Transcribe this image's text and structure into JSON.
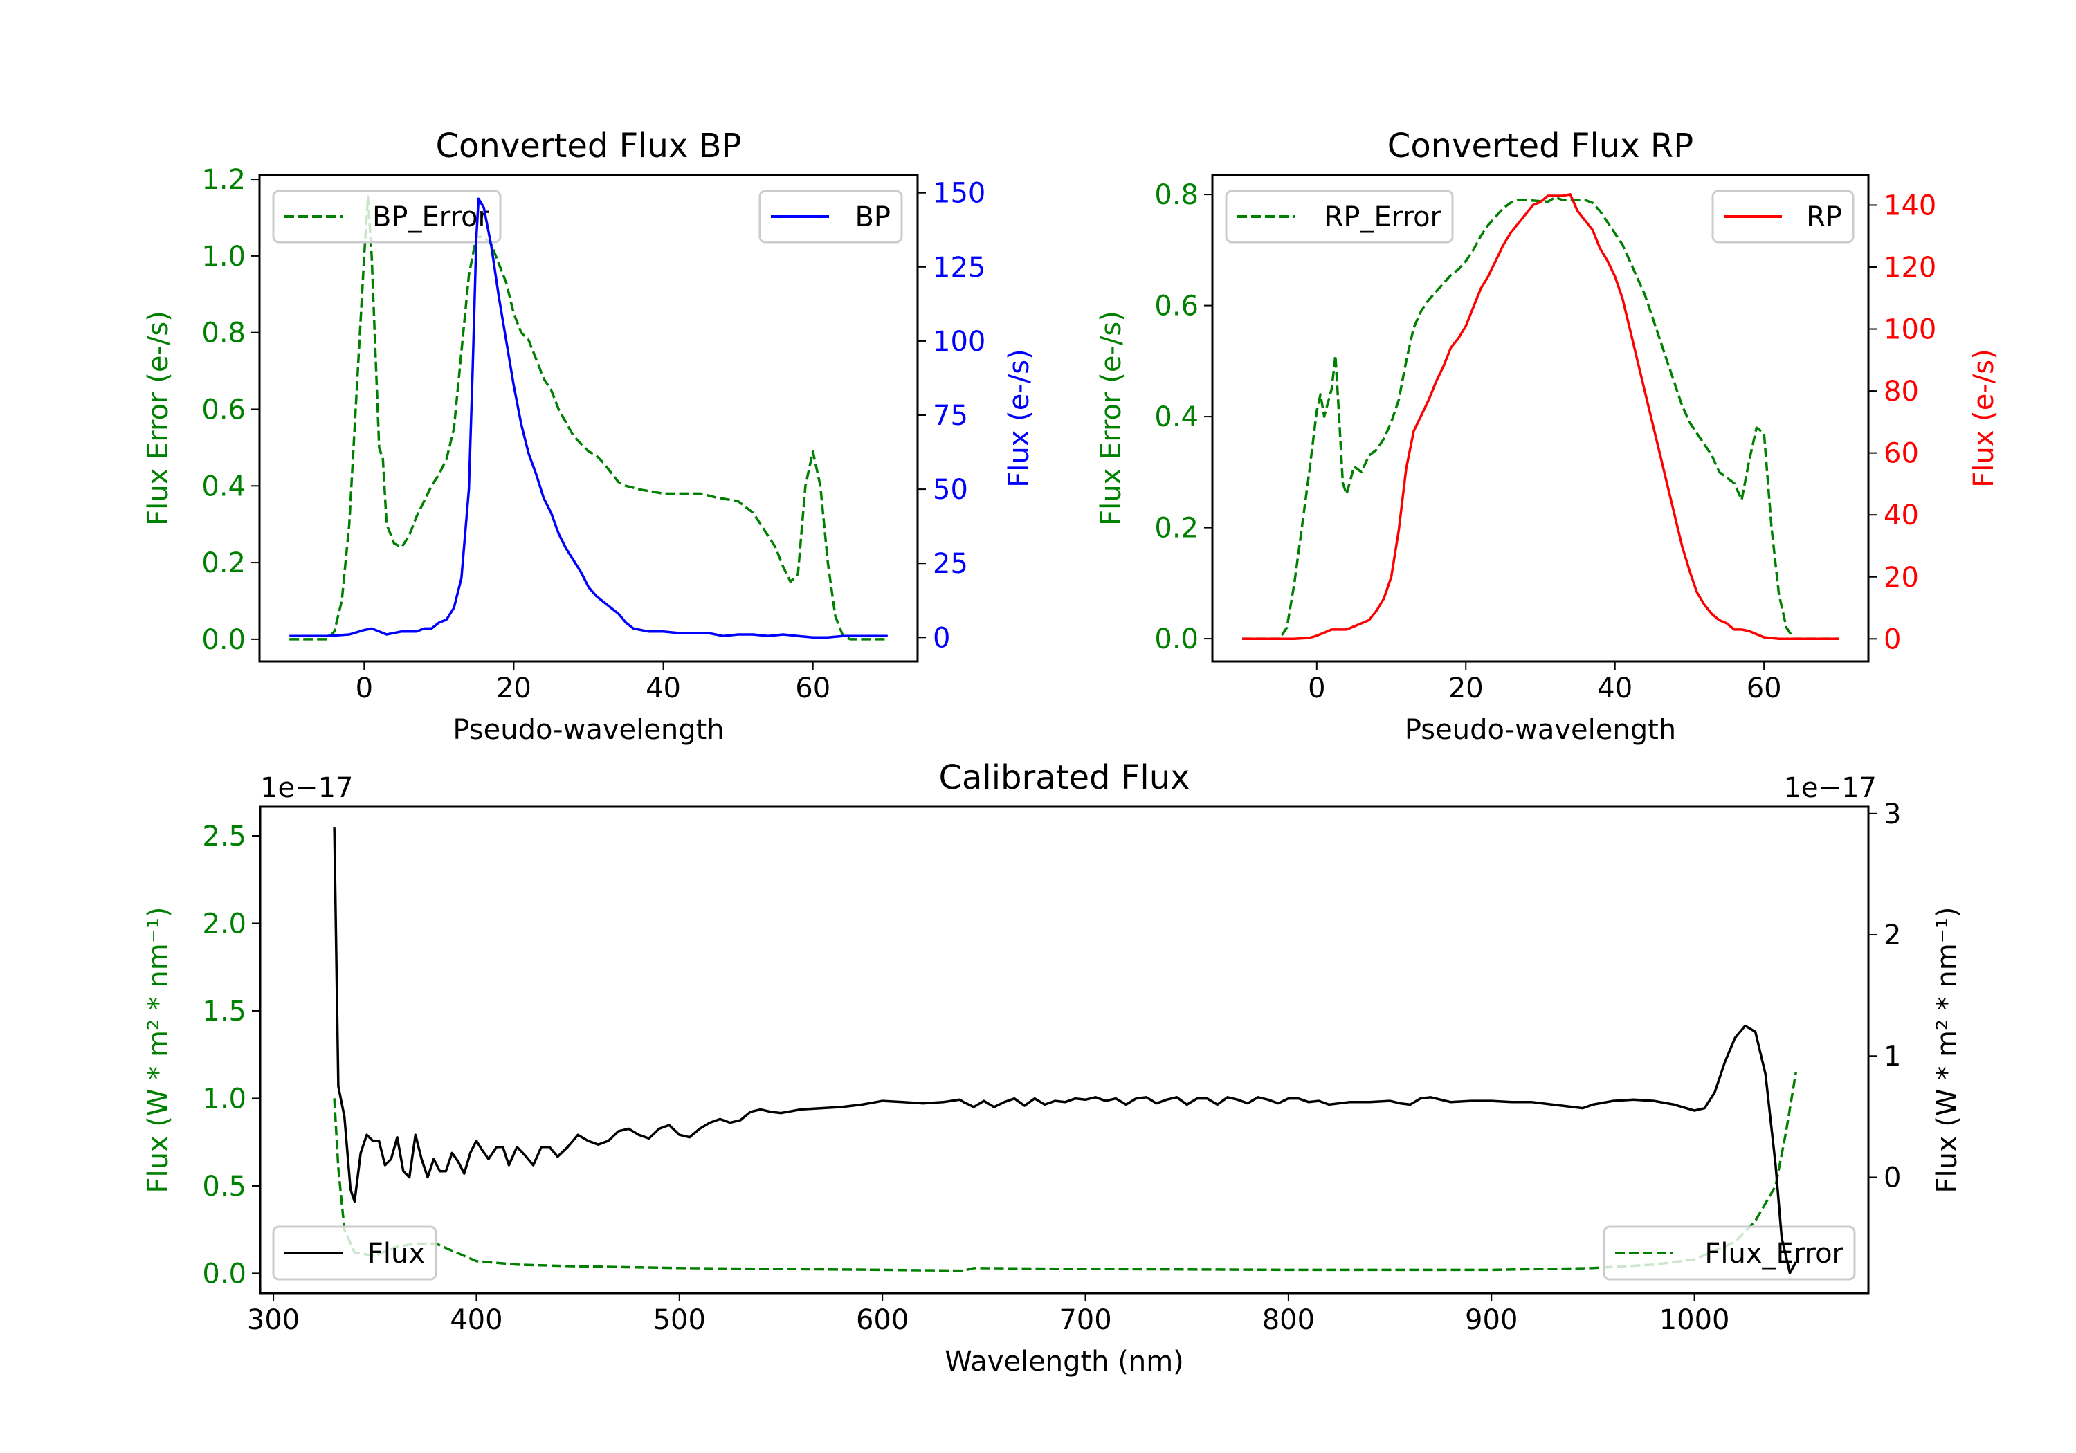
{
  "chart_data": [
    {
      "type": "line",
      "title": "Converted Flux BP",
      "xlabel": "Pseudo-wavelength",
      "xlim": [
        -14,
        74
      ],
      "xticks": [
        0,
        20,
        40,
        60
      ],
      "xtick_labels": [
        "0",
        "20",
        "40",
        "60"
      ],
      "left_axis": {
        "label": "Flux Error (e-/s)",
        "color": "#008000",
        "ylim": [
          -0.058,
          1.211
        ],
        "ticks": [
          0,
          0.2,
          0.4,
          0.6,
          0.8,
          1.0,
          1.2
        ],
        "tick_labels": [
          "0.0",
          "0.2",
          "0.4",
          "0.6",
          "0.8",
          "1.0",
          "1.2"
        ]
      },
      "right_axis": {
        "label": "Flux (e-/s)",
        "color": "#0000ff",
        "ylim": [
          -8.1,
          156
        ],
        "ticks": [
          0,
          25,
          50,
          75,
          100,
          125,
          150
        ],
        "tick_labels": [
          "0",
          "25",
          "50",
          "75",
          "100",
          "125",
          "150"
        ]
      },
      "series": [
        {
          "name": "BP_Error",
          "axis": "left",
          "color": "#008000",
          "style": "dashed",
          "legend": "upper-left",
          "x": [
            -10,
            -5,
            -4,
            -3,
            -2,
            -1,
            0,
            0.5,
            1,
            2,
            2.5,
            3,
            4,
            5,
            6,
            7,
            8,
            9,
            10,
            11,
            12,
            13,
            14,
            15,
            16,
            17,
            18,
            19,
            20,
            21,
            22,
            23,
            24,
            25,
            26,
            28,
            30,
            31,
            32,
            34,
            35,
            37,
            40,
            42,
            45,
            47,
            50,
            52,
            54,
            55,
            56,
            57,
            58,
            59,
            60,
            61,
            62,
            63,
            64,
            65,
            70
          ],
          "y": [
            0,
            0,
            0.02,
            0.1,
            0.3,
            0.65,
            1.0,
            1.155,
            1.0,
            0.5,
            0.47,
            0.3,
            0.25,
            0.24,
            0.27,
            0.32,
            0.36,
            0.4,
            0.43,
            0.47,
            0.55,
            0.75,
            0.95,
            1.05,
            1.05,
            1.03,
            0.98,
            0.93,
            0.85,
            0.8,
            0.78,
            0.73,
            0.68,
            0.65,
            0.6,
            0.53,
            0.49,
            0.48,
            0.46,
            0.41,
            0.4,
            0.39,
            0.38,
            0.38,
            0.38,
            0.37,
            0.36,
            0.33,
            0.27,
            0.24,
            0.19,
            0.15,
            0.17,
            0.4,
            0.49,
            0.4,
            0.2,
            0.06,
            0.01,
            0,
            0
          ]
        },
        {
          "name": "BP",
          "axis": "right",
          "color": "#0000ff",
          "style": "solid",
          "legend": "upper-right",
          "x": [
            -10,
            -5,
            -2,
            0,
            1,
            3,
            5,
            7,
            8,
            9,
            10,
            11,
            12,
            13,
            14,
            14.5,
            15,
            15.3,
            16,
            17,
            18,
            19,
            20,
            21,
            22,
            23,
            24,
            25,
            26,
            27,
            28,
            29,
            30,
            31,
            32,
            33,
            34,
            35,
            36,
            38,
            40,
            42,
            44,
            46,
            48,
            50,
            52,
            54,
            56,
            58,
            60,
            62,
            64,
            70
          ],
          "y": [
            0.5,
            0.5,
            1,
            2.5,
            3,
            1,
            2,
            2,
            3,
            3,
            5,
            6,
            10,
            20,
            50,
            90,
            135,
            148,
            145,
            132,
            115,
            100,
            85,
            72,
            62,
            55,
            47,
            42,
            35,
            30,
            26,
            22,
            17,
            14,
            12,
            10,
            8,
            5,
            3,
            2,
            2,
            1.5,
            1.5,
            1.5,
            0.5,
            1,
            1,
            0.5,
            1,
            0.5,
            0,
            0,
            0.5,
            0.5
          ]
        }
      ]
    },
    {
      "type": "line",
      "title": "Converted Flux RP",
      "xlabel": "Pseudo-wavelength",
      "xlim": [
        -14,
        74
      ],
      "xticks": [
        0,
        20,
        40,
        60
      ],
      "xtick_labels": [
        "0",
        "20",
        "40",
        "60"
      ],
      "left_axis": {
        "label": "Flux Error (e-/s)",
        "color": "#008000",
        "ylim": [
          -0.041,
          0.835
        ],
        "ticks": [
          0,
          0.2,
          0.4,
          0.6,
          0.8
        ],
        "tick_labels": [
          "0.0",
          "0.2",
          "0.4",
          "0.6",
          "0.8"
        ]
      },
      "right_axis": {
        "label": "Flux (e-/s)",
        "color": "#ff0000",
        "ylim": [
          -7.3,
          149.7
        ],
        "ticks": [
          0,
          20,
          40,
          60,
          80,
          100,
          120,
          140
        ],
        "tick_labels": [
          "0",
          "20",
          "40",
          "60",
          "80",
          "100",
          "120",
          "140"
        ]
      },
      "series": [
        {
          "name": "RP_Error",
          "axis": "left",
          "color": "#008000",
          "style": "dashed",
          "legend": "upper-left",
          "x": [
            -10,
            -5,
            -4,
            -3,
            -2,
            -1,
            0,
            0.5,
            1,
            2,
            2.5,
            3,
            3.5,
            4,
            5,
            6,
            7,
            8,
            9,
            10,
            11,
            12,
            13,
            14,
            15,
            16,
            17,
            18,
            19,
            20,
            21,
            22,
            23,
            24,
            25,
            26,
            27,
            28,
            30,
            31,
            32,
            33,
            34,
            36,
            37,
            38,
            39,
            40,
            41,
            42,
            43,
            44,
            45,
            46,
            47,
            48,
            49,
            50,
            51,
            52,
            53,
            54,
            55,
            56,
            57,
            58,
            59,
            60,
            61,
            62,
            63,
            64,
            70
          ],
          "y": [
            0,
            0,
            0.02,
            0.1,
            0.2,
            0.3,
            0.41,
            0.44,
            0.4,
            0.45,
            0.51,
            0.4,
            0.28,
            0.26,
            0.31,
            0.3,
            0.33,
            0.34,
            0.36,
            0.39,
            0.43,
            0.5,
            0.56,
            0.59,
            0.61,
            0.625,
            0.64,
            0.655,
            0.665,
            0.68,
            0.7,
            0.725,
            0.745,
            0.76,
            0.775,
            0.785,
            0.79,
            0.79,
            0.788,
            0.787,
            0.795,
            0.79,
            0.79,
            0.79,
            0.785,
            0.77,
            0.75,
            0.73,
            0.71,
            0.68,
            0.65,
            0.62,
            0.58,
            0.54,
            0.5,
            0.46,
            0.42,
            0.39,
            0.37,
            0.35,
            0.33,
            0.3,
            0.29,
            0.28,
            0.25,
            0.32,
            0.38,
            0.37,
            0.2,
            0.08,
            0.02,
            0,
            0
          ]
        },
        {
          "name": "RP",
          "axis": "right",
          "color": "#ff0000",
          "style": "solid",
          "legend": "upper-right",
          "x": [
            -10,
            -3,
            -1,
            0,
            1,
            2,
            3,
            4,
            5,
            6,
            7,
            8,
            9,
            10,
            11,
            12,
            13,
            14,
            15,
            16,
            17,
            18,
            19,
            20,
            21,
            22,
            23,
            24,
            25,
            26,
            27,
            28,
            29,
            30,
            31,
            32,
            33,
            34,
            35,
            36,
            37,
            38,
            39,
            40,
            41,
            42,
            43,
            44,
            45,
            46,
            47,
            48,
            49,
            50,
            51,
            52,
            53,
            54,
            55,
            56,
            57,
            58,
            59,
            60,
            62,
            70
          ],
          "y": [
            0,
            0,
            0.3,
            1,
            2,
            3,
            3,
            3,
            4,
            5,
            6,
            9,
            13,
            20,
            35,
            55,
            67,
            72,
            77,
            83,
            88,
            94,
            97,
            101,
            107,
            113,
            117,
            122,
            127,
            131,
            134,
            137,
            140,
            141,
            143,
            143,
            143,
            143.5,
            138,
            135,
            132,
            126,
            122,
            117,
            110,
            100,
            90,
            80,
            70,
            60,
            50,
            40,
            30,
            22,
            15,
            11,
            8,
            6,
            5,
            3,
            3,
            2.5,
            1.5,
            0.5,
            0,
            0
          ]
        }
      ]
    },
    {
      "type": "line",
      "title": "Calibrated Flux",
      "xlabel": "Wavelength (nm)",
      "xlim": [
        293.5,
        1085.7
      ],
      "xticks": [
        300,
        400,
        500,
        600,
        700,
        800,
        900,
        1000
      ],
      "xtick_labels": [
        "300",
        "400",
        "500",
        "600",
        "700",
        "800",
        "900",
        "1000"
      ],
      "left_axis": {
        "label": "Flux (W * m² * nm⁻¹)",
        "color": "#008000",
        "offset_text": "1e−17",
        "ylim": [
          -0.113,
          2.666
        ],
        "ticks": [
          0,
          0.5,
          1.0,
          1.5,
          2.0,
          2.5
        ],
        "tick_labels": [
          "0.0",
          "0.5",
          "1.0",
          "1.5",
          "2.0",
          "2.5"
        ]
      },
      "right_axis": {
        "label": "Flux (W * m² * nm⁻¹)",
        "color": "#000000",
        "offset_text": "1e−17",
        "ylim": [
          -0.956,
          3.056
        ],
        "ticks": [
          0,
          1,
          2,
          3
        ],
        "tick_labels": [
          "0",
          "1",
          "2",
          "3"
        ]
      },
      "series": [
        {
          "name": "Flux_Error",
          "axis": "left",
          "color": "#008000",
          "style": "dashed",
          "legend": "lower-right",
          "x": [
            330,
            332,
            335,
            340,
            350,
            360,
            370,
            380,
            390,
            400,
            410,
            420,
            450,
            500,
            550,
            600,
            640,
            645,
            700,
            800,
            900,
            950,
            980,
            1000,
            1020,
            1030,
            1040,
            1045,
            1050
          ],
          "y": [
            1.0,
            0.6,
            0.25,
            0.12,
            0.1,
            0.15,
            0.17,
            0.17,
            0.12,
            0.07,
            0.06,
            0.05,
            0.04,
            0.03,
            0.025,
            0.02,
            0.015,
            0.03,
            0.025,
            0.02,
            0.02,
            0.03,
            0.05,
            0.08,
            0.18,
            0.3,
            0.5,
            0.8,
            1.15
          ]
        },
        {
          "name": "Flux",
          "axis": "right",
          "color": "#000000",
          "style": "solid",
          "legend": "lower-left",
          "x": [
            330,
            332,
            335,
            338,
            340,
            343,
            346,
            349,
            352,
            355,
            358,
            361,
            364,
            367,
            370,
            373,
            376,
            379,
            382,
            385,
            388,
            391,
            394,
            397,
            400,
            403,
            406,
            410,
            413,
            416,
            420,
            424,
            428,
            432,
            436,
            440,
            445,
            450,
            455,
            460,
            465,
            470,
            475,
            480,
            485,
            490,
            495,
            500,
            505,
            510,
            515,
            520,
            525,
            530,
            535,
            540,
            545,
            550,
            560,
            570,
            580,
            590,
            600,
            610,
            620,
            630,
            638,
            640,
            645,
            650,
            655,
            660,
            665,
            670,
            675,
            680,
            685,
            690,
            695,
            700,
            705,
            710,
            715,
            720,
            725,
            730,
            735,
            740,
            745,
            750,
            755,
            760,
            765,
            770,
            775,
            780,
            785,
            790,
            795,
            800,
            805,
            810,
            815,
            820,
            830,
            840,
            850,
            855,
            860,
            865,
            870,
            875,
            880,
            890,
            900,
            910,
            920,
            930,
            940,
            945,
            950,
            960,
            970,
            980,
            990,
            1000,
            1005,
            1010,
            1015,
            1020,
            1025,
            1030,
            1035,
            1040,
            1043,
            1047,
            1050
          ],
          "y": [
            2.89,
            0.75,
            0.5,
            -0.1,
            -0.2,
            0.2,
            0.35,
            0.3,
            0.3,
            0.1,
            0.15,
            0.33,
            0.05,
            0.0,
            0.35,
            0.15,
            0.0,
            0.15,
            0.05,
            0.05,
            0.2,
            0.13,
            0.03,
            0.2,
            0.3,
            0.22,
            0.15,
            0.25,
            0.25,
            0.1,
            0.25,
            0.18,
            0.1,
            0.25,
            0.25,
            0.17,
            0.25,
            0.35,
            0.3,
            0.27,
            0.3,
            0.38,
            0.4,
            0.35,
            0.32,
            0.4,
            0.43,
            0.35,
            0.33,
            0.4,
            0.45,
            0.48,
            0.45,
            0.47,
            0.54,
            0.56,
            0.54,
            0.53,
            0.56,
            0.57,
            0.58,
            0.6,
            0.63,
            0.62,
            0.61,
            0.62,
            0.64,
            0.62,
            0.58,
            0.63,
            0.58,
            0.62,
            0.65,
            0.59,
            0.65,
            0.6,
            0.63,
            0.62,
            0.65,
            0.64,
            0.66,
            0.63,
            0.65,
            0.6,
            0.65,
            0.66,
            0.61,
            0.64,
            0.66,
            0.6,
            0.65,
            0.65,
            0.6,
            0.66,
            0.64,
            0.61,
            0.66,
            0.64,
            0.61,
            0.65,
            0.65,
            0.62,
            0.63,
            0.6,
            0.62,
            0.62,
            0.63,
            0.61,
            0.6,
            0.65,
            0.66,
            0.64,
            0.62,
            0.63,
            0.63,
            0.62,
            0.62,
            0.6,
            0.58,
            0.57,
            0.6,
            0.63,
            0.64,
            0.63,
            0.6,
            0.55,
            0.57,
            0.7,
            0.95,
            1.15,
            1.25,
            1.2,
            0.85,
            0.1,
            -0.5,
            -0.79,
            -0.7
          ]
        }
      ]
    }
  ]
}
